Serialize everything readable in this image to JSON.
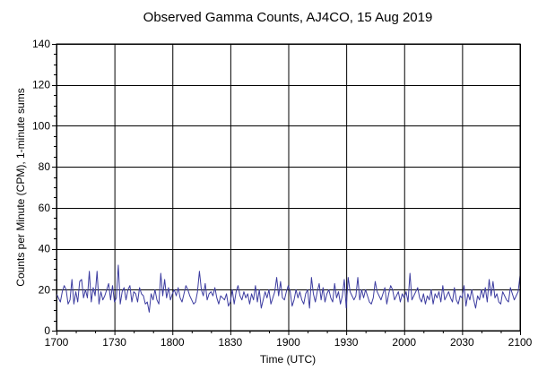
{
  "chart_data": {
    "type": "line",
    "title": "Observed Gamma Counts, AJ4CO, 15 Aug 2019",
    "xlabel": "Time (UTC)",
    "ylabel": "Counts per Minute (CPM), 1-minute sums",
    "x_ticks": [
      {
        "value": 0,
        "label": "1700"
      },
      {
        "value": 30,
        "label": "1730"
      },
      {
        "value": 60,
        "label": "1800"
      },
      {
        "value": 90,
        "label": "1830"
      },
      {
        "value": 120,
        "label": "1900"
      },
      {
        "value": 150,
        "label": "1930"
      },
      {
        "value": 180,
        "label": "2000"
      },
      {
        "value": 210,
        "label": "2030"
      },
      {
        "value": 240,
        "label": "2100"
      }
    ],
    "y_ticks": [
      0,
      20,
      40,
      60,
      80,
      100,
      120,
      140
    ],
    "xlim": [
      0,
      240
    ],
    "ylim": [
      0,
      140
    ],
    "grid": true,
    "series": [
      {
        "color": "#3c3ca0",
        "values": [
          18,
          16,
          14,
          19,
          22,
          20,
          13,
          15,
          25,
          13,
          19,
          14,
          24,
          25,
          16,
          20,
          16,
          29,
          14,
          21,
          17,
          29,
          13,
          19,
          15,
          17,
          20,
          23,
          15,
          22,
          14,
          16,
          32,
          13,
          19,
          21,
          15,
          20,
          22,
          14,
          19,
          18,
          14,
          21,
          18,
          17,
          13,
          14,
          9,
          18,
          15,
          20,
          15,
          13,
          28,
          17,
          25,
          16,
          21,
          15,
          18,
          20,
          17,
          21,
          16,
          14,
          18,
          22,
          20,
          17,
          15,
          13,
          14,
          19,
          29,
          20,
          17,
          23,
          15,
          18,
          19,
          17,
          21,
          16,
          13,
          17,
          16,
          15,
          18,
          12,
          14,
          20,
          13,
          19,
          22,
          17,
          15,
          19,
          16,
          18,
          13,
          18,
          15,
          22,
          14,
          20,
          11,
          15,
          19,
          16,
          20,
          13,
          16,
          19,
          26,
          17,
          24,
          16,
          15,
          19,
          22,
          19,
          12,
          15,
          20,
          16,
          19,
          15,
          13,
          18,
          20,
          11,
          26,
          18,
          14,
          19,
          23,
          15,
          21,
          14,
          18,
          20,
          16,
          14,
          23,
          16,
          19,
          13,
          17,
          25,
          11,
          26,
          19,
          17,
          15,
          17,
          26,
          15,
          20,
          16,
          20,
          17,
          14,
          13,
          16,
          24,
          19,
          17,
          15,
          18,
          21,
          13,
          18,
          22,
          20,
          15,
          17,
          19,
          14,
          18,
          16,
          19,
          14,
          28,
          15,
          17,
          19,
          21,
          16,
          14,
          18,
          13,
          17,
          15,
          20,
          13,
          18,
          16,
          19,
          14,
          22,
          15,
          17,
          19,
          16,
          14,
          21,
          15,
          13,
          17,
          16,
          22,
          12,
          18,
          15,
          20,
          15,
          11,
          17,
          15,
          20,
          16,
          21,
          14,
          25,
          17,
          24,
          16,
          18,
          14,
          13,
          19,
          17,
          15,
          14,
          21,
          18,
          15,
          17,
          19,
          27
        ]
      }
    ]
  }
}
